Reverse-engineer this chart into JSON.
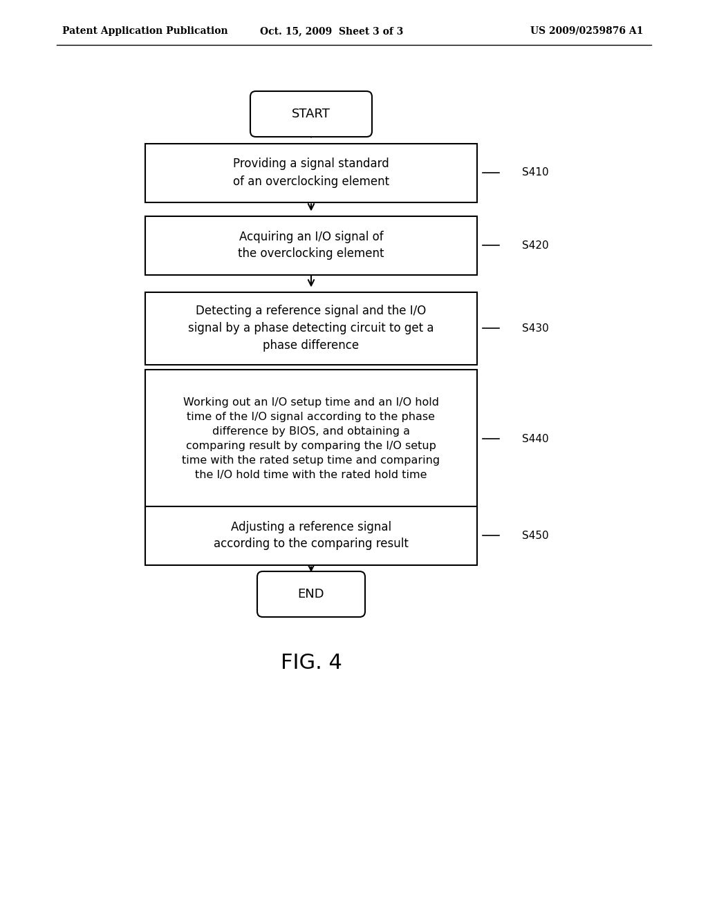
{
  "bg_color": "#ffffff",
  "header_left": "Patent Application Publication",
  "header_mid": "Oct. 15, 2009  Sheet 3 of 3",
  "header_right": "US 2009/0259876 A1",
  "header_fontsize": 10,
  "start_label": "START",
  "end_label": "END",
  "steps": [
    {
      "id": "S410",
      "label": "Providing a signal standard\nof an overclocking element",
      "tag": "S410"
    },
    {
      "id": "S420",
      "label": "Acquiring an I/O signal of\nthe overclocking element",
      "tag": "S420"
    },
    {
      "id": "S430",
      "label": "Detecting a reference signal and the I/O\nsignal by a phase detecting circuit to get a\nphase difference",
      "tag": "S430"
    },
    {
      "id": "S440",
      "label": "Working out an I/O setup time and an I/O hold\ntime of the I/O signal according to the phase\ndifference by BIOS, and obtaining a\ncomparing result by comparing the I/O setup\ntime with the rated setup time and comparing\nthe I/O hold time with the rated hold time",
      "tag": "S440"
    },
    {
      "id": "S450",
      "label": "Adjusting a reference signal\naccording to the comparing result",
      "tag": "S450"
    }
  ],
  "fig_label": "FIG. 4",
  "fig_fontsize": 22
}
